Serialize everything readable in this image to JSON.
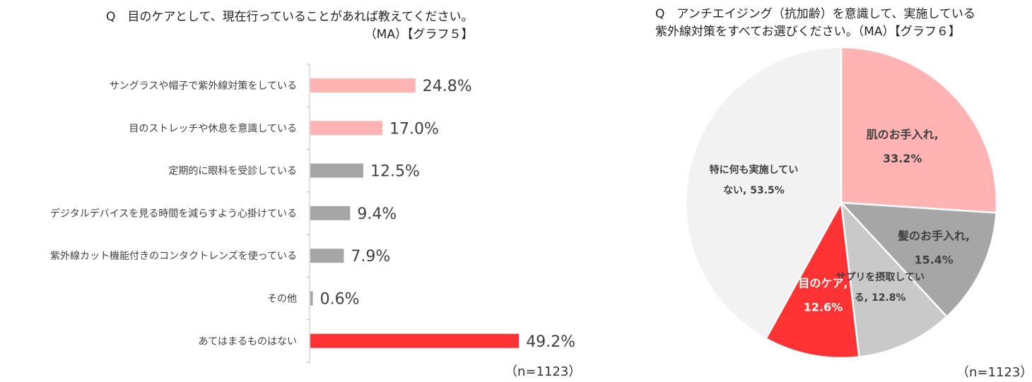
{
  "bar_chart": {
    "question": [
      "Q　目のケアとして、現在行っていることがあれば教えてください。",
      "（MA）【グラフ５】"
    ],
    "n_label": "（n=1123）"
  },
  "pie_chart": {
    "question": [
      "Q　アンチエイジング（抗加齢）を意識して、実施している",
      "紫外線対策をすべてお選びください。（MA）【グラフ６】"
    ],
    "n_label": "（n=1123）"
  },
  "chart_data": [
    {
      "type": "bar",
      "orientation": "horizontal",
      "title": "Q　目のケアとして、現在行っていることがあれば教えてください。（MA）【グラフ５】",
      "categories": [
        "サングラスや帽子で紫外線対策をしている",
        "目のストレッチや休息を意識している",
        "定期的に眼科を受診している",
        "デジタルデバイスを見る時間を減らすよう心掛けている",
        "紫外線カット機能付きのコンタクトレンズを使っている",
        "その他",
        "あてはまるものはない"
      ],
      "values": [
        24.8,
        17.0,
        12.5,
        9.4,
        7.9,
        0.6,
        49.2
      ],
      "value_labels": [
        "24.8%",
        "17.0%",
        "12.5%",
        "9.4%",
        "7.9%",
        "0.6%",
        "49.2%"
      ],
      "colors": [
        "#ffb3b3",
        "#ffb3b3",
        "#a6a6a6",
        "#a6a6a6",
        "#a6a6a6",
        "#a6a6a6",
        "#ff3333"
      ],
      "xlim": [
        0,
        100
      ],
      "grid": false
    },
    {
      "type": "pie",
      "title": "Q　アンチエイジング（抗加齢）を意識して、実施している紫外線対策をすべてお選びください。（MA）【グラフ６】",
      "start_angle_deg": 90,
      "direction": "clockwise",
      "slices": [
        {
          "label": [
            "肌のお手入れ,",
            "33.2%"
          ],
          "value": 33.2,
          "color": "#ffb3b3",
          "text_color": "#404040"
        },
        {
          "label": [
            "髪のお手入れ,",
            "15.4%"
          ],
          "value": 15.4,
          "color": "#a6a6a6",
          "text_color": "#404040"
        },
        {
          "label": [
            "サプリを摂取してい",
            "る, 12.8%"
          ],
          "value": 12.8,
          "color": "#c9c9c9",
          "text_color": "#404040"
        },
        {
          "label": [
            "目のケア,",
            "12.6%"
          ],
          "value": 12.6,
          "color": "#ff3333",
          "text_color": "#ffffff"
        },
        {
          "label": [
            "特に何も実施してい",
            "ない, 53.5%"
          ],
          "value": 53.5,
          "color": "#f2f2f2",
          "text_color": "#404040"
        }
      ]
    }
  ]
}
